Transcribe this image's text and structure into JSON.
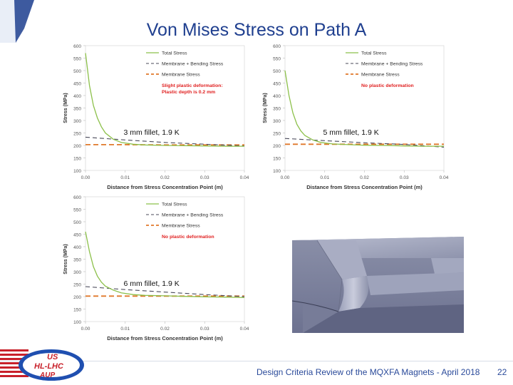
{
  "slide": {
    "title": "Von Mises Stress on Path A",
    "footer": "Design Criteria Review of the MQXFA Magnets - April 2018",
    "page_number": "22",
    "logo": {
      "line1": "US",
      "line2": "HL-LHC",
      "line3": "AUP"
    }
  },
  "colors": {
    "title": "#1f3f8f",
    "total_stress": "#8cc04a",
    "membrane_bending": "#4a4a5a",
    "membrane": "#e0782a",
    "annotation": "#e02020",
    "axis_text": "#555555"
  },
  "chart_data": [
    {
      "type": "line",
      "fillet_label": "3 mm fillet, 1.9 K",
      "annotation": [
        "Slight plastic deformation:",
        "Plastic depth is 0.2 mm"
      ],
      "xlabel": "Distance from Stress Concentration Point (m)",
      "ylabel": "Stress (MPa)",
      "xlim": [
        0,
        0.04
      ],
      "ylim": [
        100,
        600
      ],
      "xticks": [
        "0.00",
        "0.01",
        "0.02",
        "0.03",
        "0.04"
      ],
      "yticks": [
        "100",
        "150",
        "200",
        "250",
        "300",
        "350",
        "400",
        "450",
        "500",
        "550",
        "600"
      ],
      "legend": [
        "Total Stress",
        "Membrane + Bending Stress",
        "Membrane Stress"
      ],
      "series": [
        {
          "name": "Total Stress",
          "x": [
            0,
            0.001,
            0.002,
            0.003,
            0.004,
            0.005,
            0.007,
            0.009,
            0.012,
            0.015,
            0.02,
            0.025,
            0.03,
            0.035,
            0.04
          ],
          "y": [
            570,
            440,
            360,
            310,
            275,
            250,
            225,
            212,
            205,
            202,
            200,
            199,
            198,
            197,
            197
          ]
        },
        {
          "name": "Membrane + Bending Stress",
          "x": [
            0,
            0.01,
            0.02,
            0.03,
            0.04
          ],
          "y": [
            233,
            222,
            212,
            205,
            198
          ]
        },
        {
          "name": "Membrane Stress",
          "x": [
            0,
            0.01,
            0.02,
            0.03,
            0.04
          ],
          "y": [
            203,
            203,
            202,
            202,
            202
          ]
        }
      ]
    },
    {
      "type": "line",
      "fillet_label": "5 mm fillet, 1.9 K",
      "annotation": [
        "No plastic deformation"
      ],
      "xlabel": "Distance from Stress Concentration Point (m)",
      "ylabel": "Stress (MPa)",
      "xlim": [
        0,
        0.04
      ],
      "ylim": [
        100,
        600
      ],
      "xticks": [
        "0.00",
        "0.01",
        "0.02",
        "0.03",
        "0.04"
      ],
      "yticks": [
        "100",
        "150",
        "200",
        "250",
        "300",
        "350",
        "400",
        "450",
        "500",
        "550",
        "600"
      ],
      "legend": [
        "Total Stress",
        "Membrane + Bending Stress",
        "Membrane Stress"
      ],
      "series": [
        {
          "name": "Total Stress",
          "x": [
            0,
            0.001,
            0.002,
            0.003,
            0.004,
            0.005,
            0.007,
            0.009,
            0.012,
            0.015,
            0.02,
            0.025,
            0.03,
            0.035,
            0.04
          ],
          "y": [
            500,
            400,
            330,
            285,
            258,
            240,
            222,
            212,
            206,
            204,
            201,
            200,
            198,
            197,
            197
          ]
        },
        {
          "name": "Membrane + Bending Stress",
          "x": [
            0,
            0.01,
            0.02,
            0.03,
            0.04
          ],
          "y": [
            228,
            219,
            211,
            204,
            193
          ]
        },
        {
          "name": "Membrane Stress",
          "x": [
            0,
            0.01,
            0.02,
            0.03,
            0.04
          ],
          "y": [
            205,
            205,
            205,
            205,
            205
          ]
        }
      ]
    },
    {
      "type": "line",
      "fillet_label": "6 mm fillet, 1.9 K",
      "annotation": [
        "No plastic deformation"
      ],
      "xlabel": "Distance from Stress Concentration Point (m)",
      "ylabel": "Stress (MPa)",
      "xlim": [
        0,
        0.04
      ],
      "ylim": [
        100,
        600
      ],
      "xticks": [
        "0.00",
        "0.01",
        "0.02",
        "0.03",
        "0.04"
      ],
      "yticks": [
        "100",
        "150",
        "200",
        "250",
        "300",
        "350",
        "400",
        "450",
        "500",
        "550",
        "600"
      ],
      "legend": [
        "Total Stress",
        "Membrane + Bending Stress",
        "Membrane Stress"
      ],
      "series": [
        {
          "name": "Total Stress",
          "x": [
            0,
            0.001,
            0.002,
            0.003,
            0.004,
            0.005,
            0.007,
            0.009,
            0.012,
            0.015,
            0.02,
            0.025,
            0.03,
            0.035,
            0.04
          ],
          "y": [
            460,
            380,
            320,
            282,
            258,
            242,
            226,
            215,
            208,
            205,
            203,
            201,
            199,
            198,
            196
          ]
        },
        {
          "name": "Membrane + Bending Stress",
          "x": [
            0,
            0.01,
            0.02,
            0.03,
            0.04
          ],
          "y": [
            240,
            228,
            218,
            208,
            200
          ]
        },
        {
          "name": "Membrane Stress",
          "x": [
            0,
            0.01,
            0.02,
            0.03,
            0.04
          ],
          "y": [
            202,
            202,
            202,
            202,
            202
          ]
        }
      ]
    }
  ]
}
